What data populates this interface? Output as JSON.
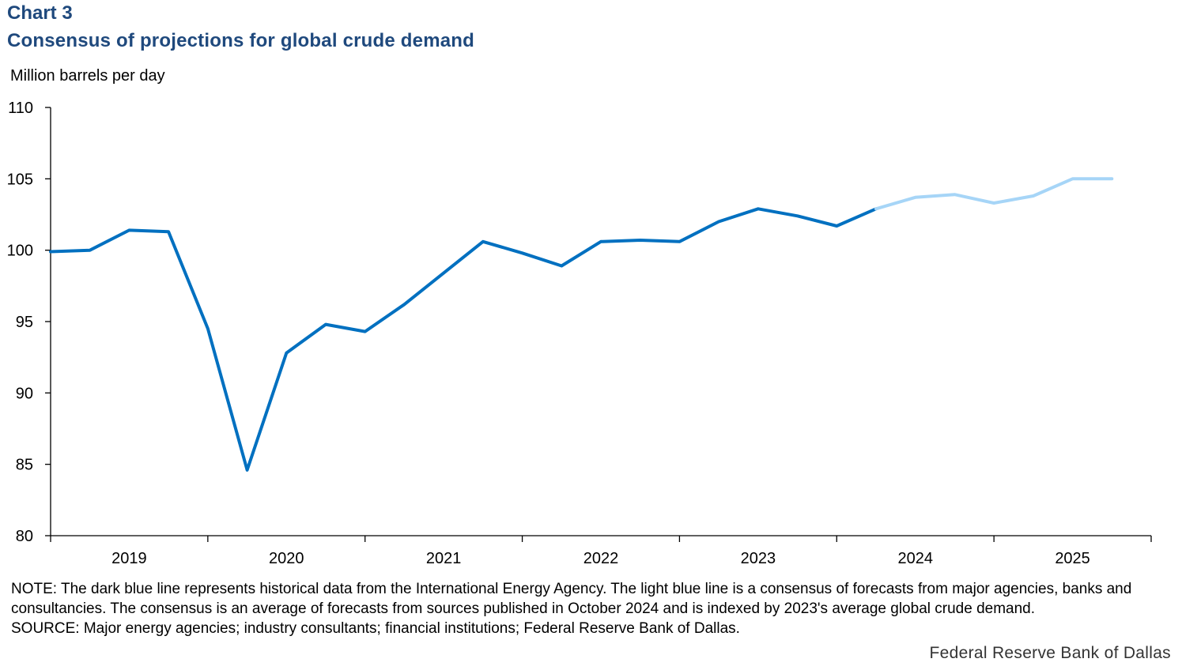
{
  "header": {
    "label": "Chart 3",
    "title": "Consensus of projections for global crude demand"
  },
  "chart_data": {
    "type": "line",
    "title": "Consensus of projections for global crude demand",
    "ylabel": "Million barrels per day",
    "xlabel": "",
    "ylim": [
      80,
      110
    ],
    "yticks": [
      80,
      85,
      90,
      95,
      100,
      105,
      110
    ],
    "year_labels": [
      "2019",
      "2020",
      "2021",
      "2022",
      "2023",
      "2024",
      "2025"
    ],
    "quarters": [
      "2019Q1",
      "2019Q2",
      "2019Q3",
      "2019Q4",
      "2020Q1",
      "2020Q2",
      "2020Q3",
      "2020Q4",
      "2021Q1",
      "2021Q2",
      "2021Q3",
      "2021Q4",
      "2022Q1",
      "2022Q2",
      "2022Q3",
      "2022Q4",
      "2023Q1",
      "2023Q2",
      "2023Q3",
      "2023Q4",
      "2024Q1",
      "2024Q2",
      "2024Q3",
      "2024Q4",
      "2025Q1",
      "2025Q2",
      "2025Q3",
      "2025Q4"
    ],
    "series": [
      {
        "name": "Historical (International Energy Agency)",
        "color": "#0070c0",
        "start_index": 0,
        "values": [
          99.9,
          100.0,
          101.4,
          101.3,
          94.5,
          84.6,
          92.8,
          94.8,
          94.3,
          96.2,
          98.4,
          100.6,
          99.8,
          98.9,
          100.6,
          100.7,
          100.6,
          102.0,
          102.9,
          102.4,
          101.7,
          102.9
        ]
      },
      {
        "name": "Consensus forecast",
        "color": "#a6d5f7",
        "start_index": 21,
        "values": [
          102.9,
          103.7,
          103.9,
          103.3,
          103.8,
          105.0,
          105.0
        ]
      }
    ]
  },
  "footer": {
    "note": "NOTE: The dark blue line represents historical data from the International Energy Agency. The light blue line is a consensus of forecasts from major agencies, banks and consultancies. The consensus is an average of forecasts from sources published in October 2024 and is indexed by 2023's average global crude demand.",
    "source": "SOURCE: Major energy agencies; industry consultants; financial institutions; Federal Reserve Bank of Dallas.",
    "credit": "Federal Reserve Bank of Dallas"
  }
}
